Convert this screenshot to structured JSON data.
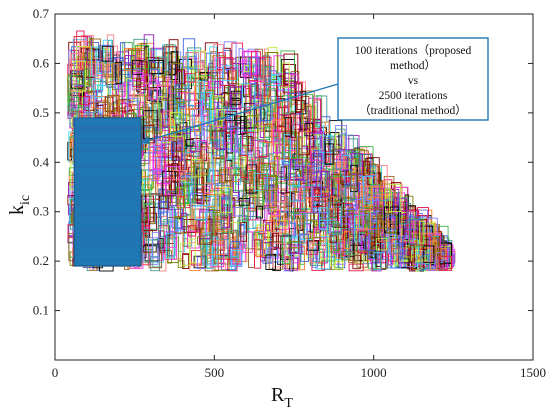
{
  "chart_data": {
    "type": "scatter",
    "title": "",
    "xlabel": {
      "main": "R",
      "sub": "T"
    },
    "ylabel": {
      "main": "k",
      "sub": "ic"
    },
    "xlim": [
      0,
      1500
    ],
    "ylim": [
      0,
      0.7
    ],
    "xticks": [
      0,
      500,
      1000,
      1500
    ],
    "yticks": [
      0.1,
      0.2,
      0.3,
      0.4,
      0.5,
      0.6,
      0.7
    ],
    "ytick_labels": [
      "0.1",
      "0.2",
      "0.3",
      "0.4",
      "0.5",
      "0.6",
      "0.7"
    ],
    "xtick_labels": [
      "0",
      "500",
      "1000",
      "1500"
    ],
    "grid": false,
    "series": [
      {
        "description": "traditional method region (many small colored rectangles)",
        "x_range": [
          40,
          1220
        ],
        "y_range": [
          0.17,
          0.61
        ],
        "envelope": [
          [
            40,
            0.61
          ],
          [
            300,
            0.61
          ],
          [
            700,
            0.58
          ],
          [
            800,
            0.5
          ],
          [
            1000,
            0.35
          ],
          [
            1220,
            0.2
          ]
        ],
        "colors": [
          "#e6194b",
          "#3cb44b",
          "#4363d8",
          "#f58231",
          "#911eb4",
          "#42d4f4",
          "#f032e6",
          "#bfef45",
          "#000000",
          "#9A6324",
          "#800000",
          "#469990",
          "#808000",
          "#ff7f7f",
          "#7f7fff"
        ]
      },
      {
        "description": "proposed method region (solid blue block)",
        "x_range": [
          60,
          270
        ],
        "y_range": [
          0.19,
          0.49
        ],
        "color": "#1f77b4"
      }
    ],
    "annotation": {
      "lines": [
        "100 iterations（proposed",
        "method）",
        "vs",
        "2500 iterations",
        "（traditional method）"
      ],
      "arrow_to": [
        270,
        0.44
      ],
      "border_color": "#1f77b4"
    }
  }
}
